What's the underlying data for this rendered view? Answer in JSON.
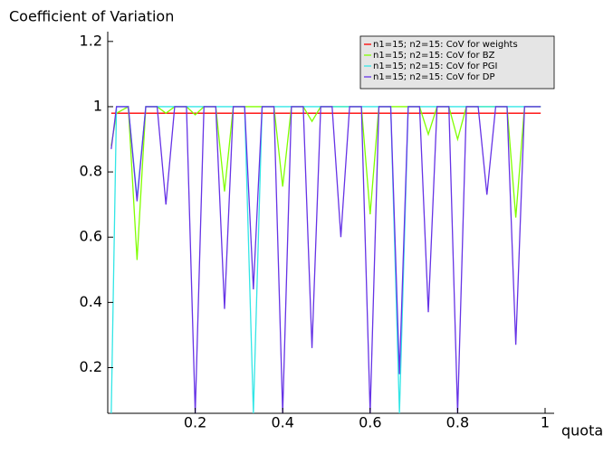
{
  "chart_data": {
    "type": "line",
    "title": "Coefficient of Variation",
    "x_label": "quota",
    "xlim": [
      0,
      1
    ],
    "ylim": [
      0.06,
      1.23
    ],
    "xticks": [
      0.2,
      0.4,
      0.6,
      0.8,
      1
    ],
    "yticks": [
      0.2,
      0.4,
      0.6,
      0.8,
      1,
      1.2
    ],
    "legend_position": "upper right",
    "x": [
      0.008,
      0.02,
      0.047,
      0.067,
      0.087,
      0.113,
      0.133,
      0.153,
      0.18,
      0.2,
      0.22,
      0.247,
      0.267,
      0.287,
      0.313,
      0.333,
      0.353,
      0.38,
      0.4,
      0.42,
      0.447,
      0.467,
      0.487,
      0.513,
      0.533,
      0.553,
      0.58,
      0.6,
      0.62,
      0.647,
      0.667,
      0.687,
      0.713,
      0.733,
      0.753,
      0.78,
      0.8,
      0.82,
      0.847,
      0.867,
      0.887,
      0.913,
      0.933,
      0.953,
      0.99
    ],
    "series": [
      {
        "name": "n1=15; n2=15: CoV for weights",
        "color": "#ff0000",
        "values": [
          0.98,
          0.98,
          0.98,
          0.98,
          0.98,
          0.98,
          0.98,
          0.98,
          0.98,
          0.98,
          0.98,
          0.98,
          0.98,
          0.98,
          0.98,
          0.98,
          0.98,
          0.98,
          0.98,
          0.98,
          0.98,
          0.98,
          0.98,
          0.98,
          0.98,
          0.98,
          0.98,
          0.98,
          0.98,
          0.98,
          0.98,
          0.98,
          0.98,
          0.98,
          0.98,
          0.98,
          0.98,
          0.98,
          0.98,
          0.98,
          0.98,
          0.98,
          0.98,
          0.98,
          0.98
        ]
      },
      {
        "name": "n1=15; n2=15: CoV for BZ",
        "color": "#80ff00",
        "values": [
          0.88,
          0.98,
          1,
          0.53,
          1,
          1,
          0.98,
          1,
          1,
          0.975,
          1,
          1,
          0.74,
          1,
          1,
          1,
          1,
          1,
          0.755,
          1,
          1,
          0.955,
          1,
          1,
          1,
          1,
          1,
          0.67,
          1,
          1,
          1,
          1,
          1,
          0.915,
          1,
          1,
          0.9,
          1,
          1,
          1,
          1,
          1,
          0.66,
          1,
          1
        ]
      },
      {
        "name": "n1=15; n2=15: CoV for PGI",
        "color": "#33e6e6",
        "values": [
          0.06,
          1,
          1,
          0.72,
          1,
          1,
          1,
          1,
          1,
          1,
          1,
          1,
          1,
          1,
          1,
          0.06,
          1,
          1,
          1,
          1,
          1,
          1,
          1,
          1,
          1,
          1,
          1,
          1,
          1,
          1,
          0.06,
          1,
          1,
          1,
          1,
          1,
          1,
          1,
          1,
          1,
          1,
          1,
          1,
          1,
          1
        ]
      },
      {
        "name": "n1=15; n2=15: CoV for DP",
        "color": "#6633e6",
        "values": [
          0.87,
          1,
          1,
          0.71,
          1,
          1,
          0.7,
          1,
          1,
          0.06,
          1,
          1,
          0.38,
          1,
          1,
          0.44,
          1,
          1,
          0.06,
          1,
          1,
          0.26,
          1,
          1,
          0.6,
          1,
          1,
          0.06,
          1,
          1,
          0.18,
          1,
          1,
          0.37,
          1,
          1,
          0.06,
          1,
          1,
          0.73,
          1,
          1,
          0.27,
          1,
          1
        ]
      }
    ]
  }
}
